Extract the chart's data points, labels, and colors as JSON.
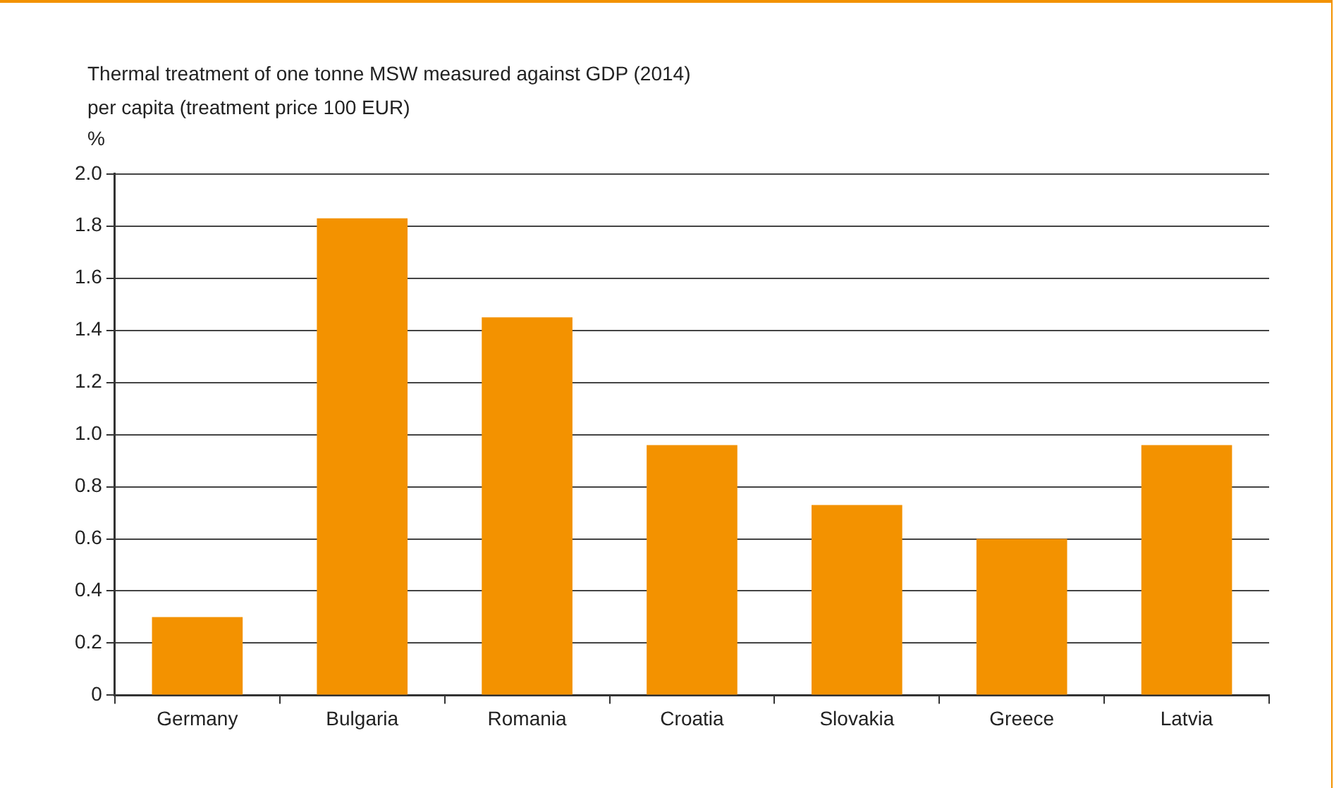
{
  "chart_data": {
    "type": "bar",
    "title": "Thermal treatment of one tonne MSW measured against GDP (2014)\nper capita (treatment price 100 EUR)",
    "ylabel": "%",
    "categories": [
      "Germany",
      "Bulgaria",
      "Romania",
      "Croatia",
      "Slovakia",
      "Greece",
      "Latvia"
    ],
    "values": [
      0.3,
      1.83,
      1.45,
      0.96,
      0.73,
      0.6,
      0.96
    ],
    "color": "#f39200",
    "ylim": [
      0,
      2.0
    ],
    "yticks": [
      {
        "value": 0,
        "label": "0"
      },
      {
        "value": 0.2,
        "label": "0.2"
      },
      {
        "value": 0.4,
        "label": "0.4"
      },
      {
        "value": 0.6,
        "label": "0.6"
      },
      {
        "value": 0.8,
        "label": "0.8"
      },
      {
        "value": 1.0,
        "label": "1.0"
      },
      {
        "value": 1.2,
        "label": "1.2"
      },
      {
        "value": 1.4,
        "label": "1.4"
      },
      {
        "value": 1.6,
        "label": "1.6"
      },
      {
        "value": 1.8,
        "label": "1.8"
      },
      {
        "value": 2.0,
        "label": "2.0"
      }
    ],
    "grid": "y",
    "legend": false
  }
}
